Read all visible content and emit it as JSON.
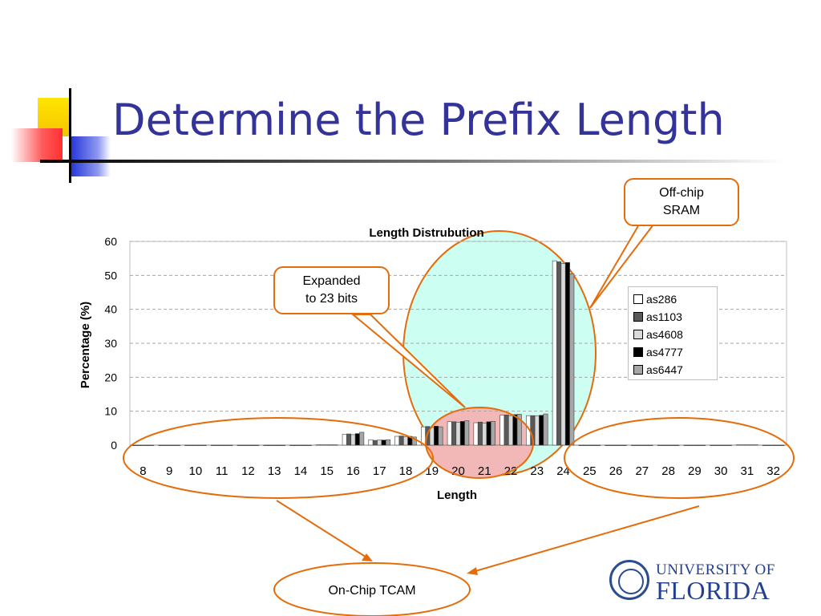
{
  "slide": {
    "title": "Determine the Prefix Length"
  },
  "callouts": {
    "off_chip": "Off-chip SRAM",
    "expanded": "Expanded to 23 bits",
    "on_chip": "On-Chip TCAM"
  },
  "logo": {
    "line1": "UNIVERSITY OF",
    "line2": "FLORIDA"
  },
  "colors": {
    "title": "#33339a",
    "accent_orange": "#e46c0a",
    "highlight_cyan": "#ccfff2",
    "highlight_pink": "#f2b8b8"
  },
  "chart_data": {
    "type": "bar",
    "title": "Length Distrubution",
    "xlabel": "Length",
    "ylabel": "Percentage (%)",
    "ylim": [
      0,
      60
    ],
    "yticks": [
      0,
      10,
      20,
      30,
      40,
      50,
      60
    ],
    "grid": true,
    "legend_position": "right",
    "categories": [
      "8",
      "9",
      "10",
      "11",
      "12",
      "13",
      "14",
      "15",
      "16",
      "17",
      "18",
      "19",
      "20",
      "21",
      "22",
      "23",
      "24",
      "25",
      "26",
      "27",
      "28",
      "29",
      "30",
      "31",
      "32"
    ],
    "series": [
      {
        "name": "as286",
        "color": "#ffffff",
        "values": [
          0,
          0,
          0,
          0,
          0,
          0,
          0,
          0.1,
          3.2,
          1.6,
          2.6,
          5.4,
          6.9,
          6.6,
          8.8,
          8.7,
          54.3,
          0,
          0,
          0,
          0,
          0,
          0,
          0.1,
          0
        ]
      },
      {
        "name": "as1103",
        "color": "#595959",
        "values": [
          0,
          0,
          0,
          0,
          0,
          0,
          0,
          0.1,
          3.3,
          1.4,
          2.7,
          5.5,
          6.9,
          6.8,
          8.9,
          8.7,
          54.0,
          0,
          0,
          0,
          0,
          0,
          0,
          0.1,
          0
        ]
      },
      {
        "name": "as4608",
        "color": "#d9d9d9",
        "values": [
          0,
          0,
          0,
          0,
          0,
          0,
          0,
          0.1,
          3.1,
          1.5,
          2.5,
          5.2,
          6.7,
          6.5,
          8.7,
          8.6,
          53.5,
          0,
          0,
          0,
          0,
          0,
          0,
          0.1,
          0
        ]
      },
      {
        "name": "as4777",
        "color": "#000000",
        "values": [
          0,
          0,
          0,
          0,
          0,
          0,
          0,
          0.1,
          3.4,
          1.5,
          2.6,
          5.6,
          7.0,
          6.9,
          9.0,
          8.8,
          53.8,
          0,
          0,
          0,
          0,
          0,
          0,
          0.1,
          0
        ]
      },
      {
        "name": "as6447",
        "color": "#a6a6a6",
        "values": [
          0,
          0,
          0,
          0,
          0,
          0,
          0,
          0.1,
          3.8,
          1.6,
          2.4,
          5.4,
          7.2,
          7.0,
          9.1,
          9.2,
          50.5,
          0,
          0,
          0,
          0,
          0,
          0,
          0.1,
          0
        ]
      }
    ]
  }
}
